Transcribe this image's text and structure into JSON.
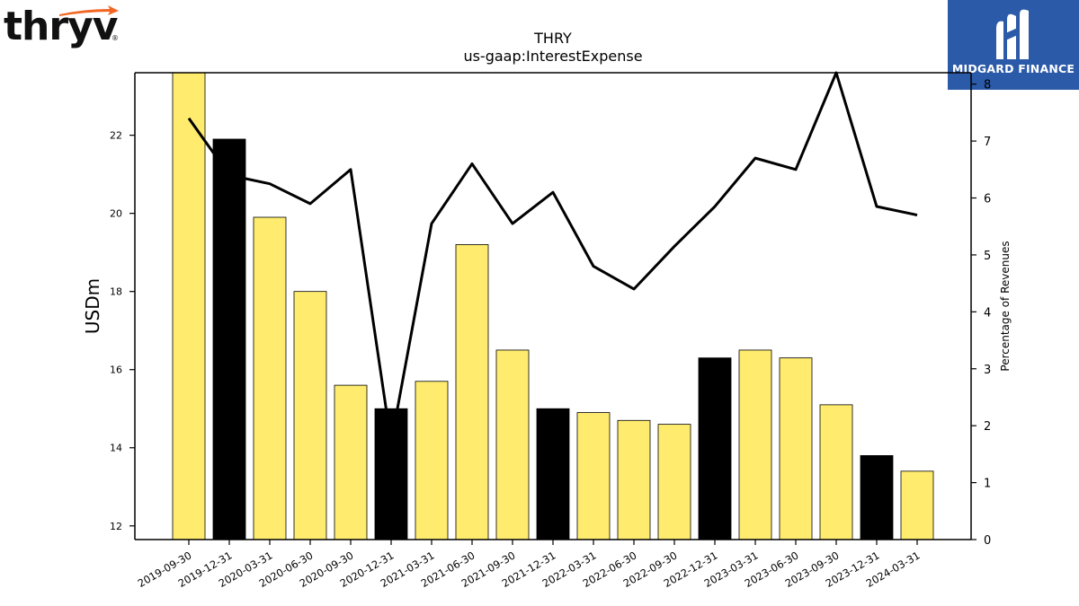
{
  "header": {
    "left_logo_text": "thryv",
    "left_logo_mark": "®",
    "right_logo_text": "MIDGARD FINANCE",
    "right_logo_icon": "midgard-m-icon"
  },
  "chart_data": {
    "type": "bar",
    "title": "THRY",
    "subtitle": "us-gaap:InterestExpense",
    "ylabel": "USDm",
    "y2label": "Percentage of Revenues",
    "categories": [
      "2019-09-30",
      "2019-12-31",
      "2020-03-31",
      "2020-06-30",
      "2020-09-30",
      "2020-12-31",
      "2021-03-31",
      "2021-06-30",
      "2021-09-30",
      "2021-12-31",
      "2022-03-31",
      "2022-06-30",
      "2022-09-30",
      "2022-12-31",
      "2023-03-31",
      "2023-06-30",
      "2023-09-30",
      "2023-12-31",
      "2024-03-31"
    ],
    "series": [
      {
        "type": "bar",
        "axis": "left",
        "values": [
          23.6,
          21.9,
          19.9,
          18.0,
          15.6,
          15.0,
          15.7,
          19.2,
          16.5,
          15.0,
          14.9,
          14.7,
          14.6,
          16.3,
          16.5,
          16.3,
          15.1,
          13.8,
          13.4
        ],
        "colors": [
          "#ffec6e",
          "#000000",
          "#ffec6e",
          "#ffec6e",
          "#ffec6e",
          "#000000",
          "#ffec6e",
          "#ffec6e",
          "#ffec6e",
          "#000000",
          "#ffec6e",
          "#ffec6e",
          "#ffec6e",
          "#000000",
          "#ffec6e",
          "#ffec6e",
          "#ffec6e",
          "#000000",
          "#ffec6e"
        ]
      },
      {
        "type": "line",
        "axis": "right",
        "color": "#000000",
        "values": [
          7.4,
          6.4,
          6.25,
          5.9,
          6.5,
          1.7,
          5.55,
          6.6,
          5.55,
          6.1,
          4.8,
          4.4,
          5.15,
          5.85,
          6.7,
          6.5,
          8.2,
          5.85,
          5.7
        ]
      }
    ],
    "ylim": [
      11.65,
      23.6
    ],
    "y_ticks": [
      12,
      14,
      16,
      18,
      20,
      22
    ],
    "y2lim": [
      0,
      8.2
    ],
    "y2_ticks": [
      0,
      1,
      2,
      3,
      4,
      5,
      6,
      7,
      8
    ],
    "grid": false,
    "legend": "none"
  }
}
